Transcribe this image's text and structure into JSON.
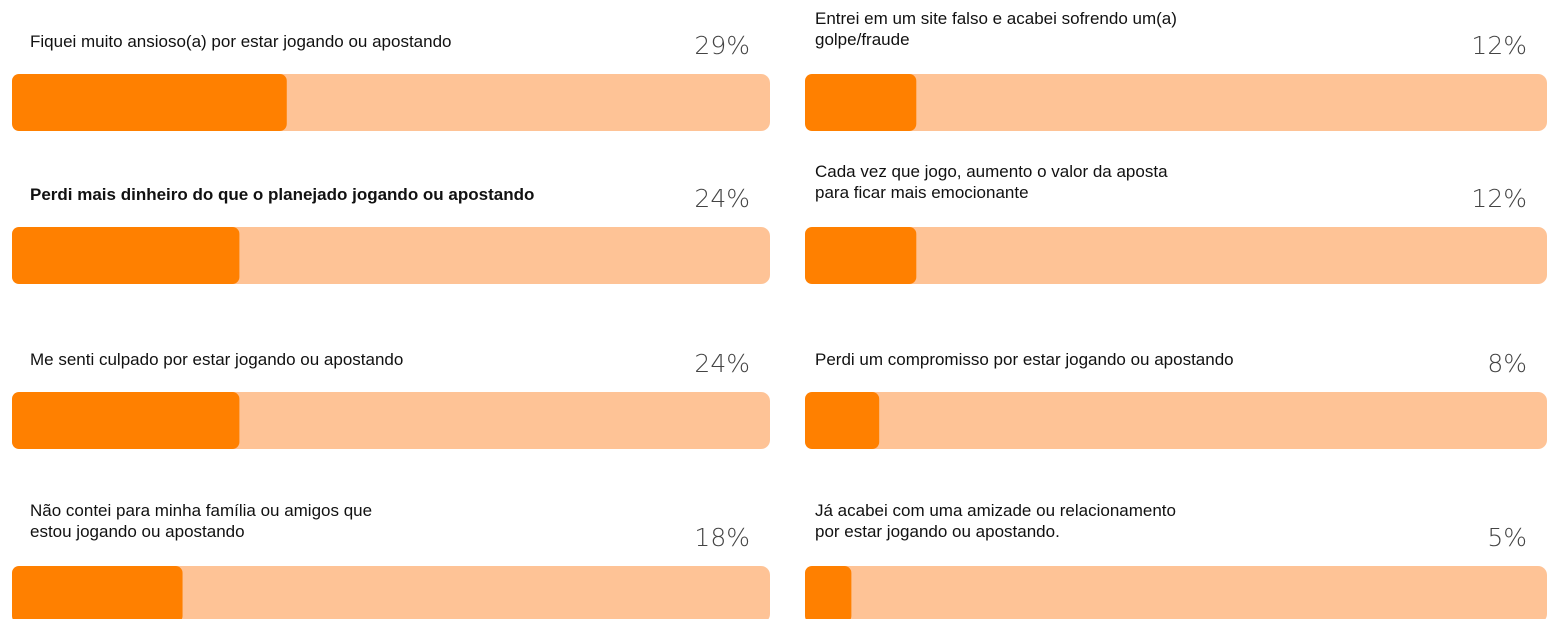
{
  "chart_data": [
    {
      "type": "bar",
      "categories": [
        [
          "Fiquei muito ansioso(a) por estar jogando ou apostando"
        ],
        [
          "Perdi mais dinheiro do que o planejado jogando ou apostando"
        ],
        [
          "Me senti culpado por estar jogando ou apostando"
        ],
        [
          "Não contei para minha família ou amigos que",
          "estou jogando ou apostando"
        ]
      ],
      "values": [
        29,
        24,
        24,
        18
      ],
      "value_labels": [
        "29%",
        "24%",
        "24%",
        "18%"
      ],
      "bold": [
        false,
        true,
        false,
        false
      ],
      "xlim": [
        0,
        80
      ],
      "color": "#ff8000",
      "track_color": "#fec396"
    },
    {
      "type": "bar",
      "categories": [
        [
          "Entrei em um site falso e acabei sofrendo um(a)",
          "golpe/fraude"
        ],
        [
          "Cada vez que jogo, aumento o valor da aposta",
          "para ficar mais emocionante"
        ],
        [
          "Perdi um compromisso por estar jogando ou apostando"
        ],
        [
          "Já acabei com uma amizade ou relacionamento",
          "por estar jogando ou apostando."
        ]
      ],
      "values": [
        12,
        12,
        8,
        5
      ],
      "value_labels": [
        "12%",
        "12%",
        "8%",
        "5%"
      ],
      "bold": [
        false,
        false,
        false,
        false
      ],
      "xlim": [
        0,
        80
      ],
      "color": "#ff8000",
      "track_color": "#fec396"
    }
  ]
}
